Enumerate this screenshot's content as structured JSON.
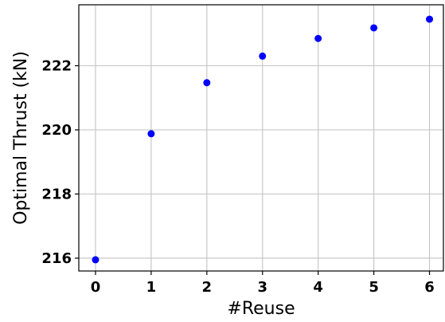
{
  "chart_data": {
    "type": "scatter",
    "title": "",
    "xlabel": "#Reuse",
    "ylabel": "Optimal Thrust (kN)",
    "x": [
      0,
      1,
      2,
      3,
      4,
      5,
      6
    ],
    "series": [
      {
        "values": [
          215.95,
          219.88,
          221.47,
          222.3,
          222.85,
          223.18,
          223.45
        ],
        "color": "#0000ff"
      }
    ],
    "xticks": [
      "0",
      "1",
      "2",
      "3",
      "4",
      "5",
      "6"
    ],
    "yticks": [
      "216",
      "218",
      "220",
      "222"
    ],
    "xlim": [
      -0.3,
      6.25
    ],
    "ylim": [
      215.6,
      223.9
    ],
    "grid": true,
    "legend": "none"
  }
}
